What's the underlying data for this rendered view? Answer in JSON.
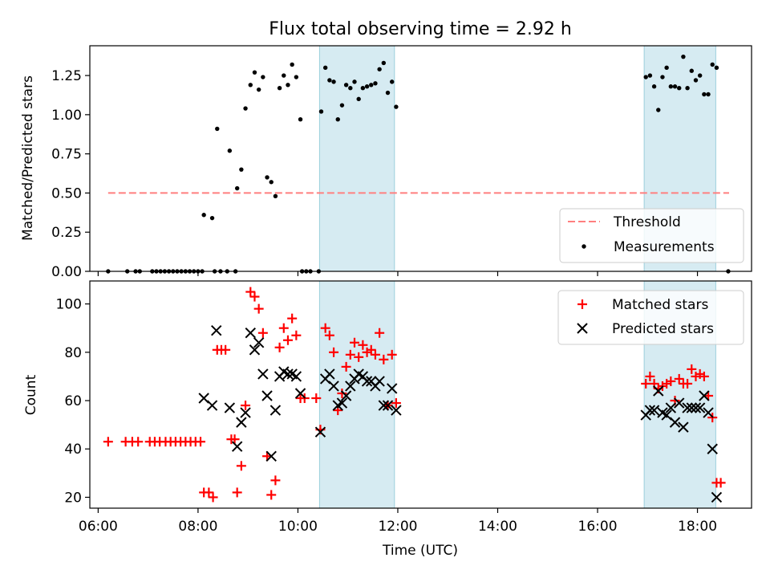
{
  "chart_data": [
    {
      "type": "scatter",
      "title": "Flux total observing time = 2.92 h",
      "xlabel": "",
      "ylabel": "Matched/Predicted stars",
      "xlim": [
        "05:50",
        "19:05"
      ],
      "ylim": [
        0,
        1.44
      ],
      "yticks": [
        "0.00",
        "0.25",
        "0.50",
        "0.75",
        "1.00",
        "1.25"
      ],
      "shaded_intervals": [
        [
          "10:26",
          "11:56"
        ],
        [
          "16:56",
          "18:22"
        ]
      ],
      "legend": {
        "position": "lower right",
        "entries": [
          "Threshold",
          "Measurements"
        ]
      },
      "threshold": {
        "name": "Threshold",
        "value": 0.5,
        "x": [
          "06:12",
          "18:38"
        ],
        "color": "#ff7f7f",
        "style": "dashed"
      },
      "series": [
        {
          "name": "Measurements",
          "color": "#000000",
          "marker": "dot",
          "points": [
            [
              "06:12",
              0
            ],
            [
              "06:35",
              0
            ],
            [
              "06:45",
              0
            ],
            [
              "06:50",
              0
            ],
            [
              "07:05",
              0
            ],
            [
              "07:10",
              0
            ],
            [
              "07:15",
              0
            ],
            [
              "07:20",
              0
            ],
            [
              "07:25",
              0
            ],
            [
              "07:30",
              0
            ],
            [
              "07:35",
              0
            ],
            [
              "07:40",
              0
            ],
            [
              "07:45",
              0
            ],
            [
              "07:50",
              0
            ],
            [
              "07:55",
              0
            ],
            [
              "08:00",
              0
            ],
            [
              "08:05",
              0
            ],
            [
              "08:20",
              0
            ],
            [
              "08:27",
              0
            ],
            [
              "08:35",
              0
            ],
            [
              "08:45",
              0
            ],
            [
              "08:07",
              0.36
            ],
            [
              "08:17",
              0.34
            ],
            [
              "08:23",
              0.91
            ],
            [
              "08:38",
              0.77
            ],
            [
              "08:47",
              0.53
            ],
            [
              "08:52",
              0.65
            ],
            [
              "08:57",
              1.04
            ],
            [
              "09:03",
              1.19
            ],
            [
              "09:08",
              1.27
            ],
            [
              "09:13",
              1.16
            ],
            [
              "09:18",
              1.24
            ],
            [
              "09:23",
              0.6
            ],
            [
              "09:28",
              0.57
            ],
            [
              "09:33",
              0.48
            ],
            [
              "09:38",
              1.17
            ],
            [
              "09:43",
              1.25
            ],
            [
              "09:48",
              1.19
            ],
            [
              "09:53",
              1.32
            ],
            [
              "09:58",
              1.24
            ],
            [
              "10:03",
              0.97
            ],
            [
              "10:05",
              0
            ],
            [
              "10:10",
              0
            ],
            [
              "10:15",
              0
            ],
            [
              "10:25",
              0
            ],
            [
              "10:28",
              1.02
            ],
            [
              "10:33",
              1.3
            ],
            [
              "10:38",
              1.22
            ],
            [
              "10:43",
              1.21
            ],
            [
              "10:48",
              0.97
            ],
            [
              "10:53",
              1.06
            ],
            [
              "10:58",
              1.19
            ],
            [
              "11:03",
              1.17
            ],
            [
              "11:08",
              1.21
            ],
            [
              "11:13",
              1.1
            ],
            [
              "11:18",
              1.17
            ],
            [
              "11:23",
              1.18
            ],
            [
              "11:28",
              1.19
            ],
            [
              "11:33",
              1.2
            ],
            [
              "11:38",
              1.29
            ],
            [
              "11:43",
              1.33
            ],
            [
              "11:48",
              1.14
            ],
            [
              "11:53",
              1.21
            ],
            [
              "11:58",
              1.05
            ],
            [
              "16:58",
              1.24
            ],
            [
              "17:03",
              1.25
            ],
            [
              "17:08",
              1.18
            ],
            [
              "17:13",
              1.03
            ],
            [
              "17:18",
              1.24
            ],
            [
              "17:23",
              1.3
            ],
            [
              "17:28",
              1.18
            ],
            [
              "17:33",
              1.18
            ],
            [
              "17:38",
              1.17
            ],
            [
              "17:43",
              1.37
            ],
            [
              "17:48",
              1.17
            ],
            [
              "17:53",
              1.28
            ],
            [
              "17:58",
              1.22
            ],
            [
              "18:03",
              1.25
            ],
            [
              "18:08",
              1.13
            ],
            [
              "18:13",
              1.13
            ],
            [
              "18:18",
              1.32
            ],
            [
              "18:23",
              1.3
            ],
            [
              "18:37",
              0
            ]
          ]
        }
      ]
    },
    {
      "type": "scatter",
      "title": "",
      "xlabel": "Time (UTC)",
      "ylabel": "Count",
      "xlim": [
        "05:50",
        "19:05"
      ],
      "ylim": [
        15.5,
        109.5
      ],
      "yticks": [
        "20",
        "40",
        "60",
        "80",
        "100"
      ],
      "xticks": [
        "06:00",
        "08:00",
        "10:00",
        "12:00",
        "14:00",
        "16:00",
        "18:00"
      ],
      "shaded_intervals": [
        [
          "10:26",
          "11:56"
        ],
        [
          "16:56",
          "18:22"
        ]
      ],
      "legend": {
        "position": "upper right",
        "entries": [
          "Matched stars",
          "Predicted stars"
        ]
      },
      "series": [
        {
          "name": "Matched stars",
          "color": "#ff0000",
          "marker": "plus",
          "points": [
            [
              "06:12",
              43
            ],
            [
              "06:33",
              43
            ],
            [
              "06:41",
              43
            ],
            [
              "06:48",
              43
            ],
            [
              "07:02",
              43
            ],
            [
              "07:08",
              43
            ],
            [
              "07:14",
              43
            ],
            [
              "07:21",
              43
            ],
            [
              "07:27",
              43
            ],
            [
              "07:33",
              43
            ],
            [
              "07:39",
              43
            ],
            [
              "07:45",
              43
            ],
            [
              "07:51",
              43
            ],
            [
              "07:57",
              43
            ],
            [
              "08:03",
              43
            ],
            [
              "08:07",
              22
            ],
            [
              "08:13",
              22
            ],
            [
              "08:18",
              20
            ],
            [
              "08:23",
              81
            ],
            [
              "08:28",
              81
            ],
            [
              "08:33",
              81
            ],
            [
              "08:40",
              44
            ],
            [
              "08:44",
              44
            ],
            [
              "08:47",
              22
            ],
            [
              "08:52",
              33
            ],
            [
              "08:57",
              58
            ],
            [
              "09:03",
              105
            ],
            [
              "09:08",
              103
            ],
            [
              "09:13",
              98
            ],
            [
              "09:18",
              88
            ],
            [
              "09:23",
              37
            ],
            [
              "09:28",
              21
            ],
            [
              "09:33",
              27
            ],
            [
              "09:38",
              82
            ],
            [
              "09:43",
              90
            ],
            [
              "09:48",
              85
            ],
            [
              "09:53",
              94
            ],
            [
              "09:58",
              87
            ],
            [
              "10:03",
              61
            ],
            [
              "10:08",
              61
            ],
            [
              "10:22",
              61
            ],
            [
              "10:27",
              48
            ],
            [
              "10:33",
              90
            ],
            [
              "10:38",
              87
            ],
            [
              "10:43",
              80
            ],
            [
              "10:48",
              56
            ],
            [
              "10:53",
              63
            ],
            [
              "10:58",
              74
            ],
            [
              "11:03",
              79
            ],
            [
              "11:08",
              84
            ],
            [
              "11:13",
              78
            ],
            [
              "11:18",
              83
            ],
            [
              "11:23",
              80
            ],
            [
              "11:28",
              81
            ],
            [
              "11:33",
              79
            ],
            [
              "11:38",
              88
            ],
            [
              "11:43",
              77
            ],
            [
              "11:48",
              58
            ],
            [
              "11:53",
              79
            ],
            [
              "11:58",
              59
            ],
            [
              "16:58",
              67
            ],
            [
              "17:03",
              70
            ],
            [
              "17:08",
              67
            ],
            [
              "17:13",
              65
            ],
            [
              "17:18",
              66
            ],
            [
              "17:23",
              67
            ],
            [
              "17:28",
              68
            ],
            [
              "17:33",
              60
            ],
            [
              "17:38",
              69
            ],
            [
              "17:43",
              67
            ],
            [
              "17:48",
              67
            ],
            [
              "17:53",
              73
            ],
            [
              "17:58",
              70
            ],
            [
              "18:03",
              71
            ],
            [
              "18:08",
              70
            ],
            [
              "18:13",
              62
            ],
            [
              "18:18",
              53
            ],
            [
              "18:23",
              26
            ],
            [
              "18:28",
              26
            ]
          ]
        },
        {
          "name": "Predicted stars",
          "color": "#000000",
          "marker": "x",
          "points": [
            [
              "08:07",
              61
            ],
            [
              "08:17",
              58
            ],
            [
              "08:22",
              89
            ],
            [
              "08:38",
              57
            ],
            [
              "08:47",
              41
            ],
            [
              "08:52",
              51
            ],
            [
              "08:57",
              55
            ],
            [
              "09:03",
              88
            ],
            [
              "09:08",
              81
            ],
            [
              "09:13",
              84
            ],
            [
              "09:18",
              71
            ],
            [
              "09:23",
              62
            ],
            [
              "09:28",
              37
            ],
            [
              "09:33",
              56
            ],
            [
              "09:38",
              70
            ],
            [
              "09:43",
              72
            ],
            [
              "09:48",
              71
            ],
            [
              "09:53",
              71
            ],
            [
              "09:58",
              70
            ],
            [
              "10:03",
              63
            ],
            [
              "10:27",
              47
            ],
            [
              "10:33",
              69
            ],
            [
              "10:38",
              71
            ],
            [
              "10:43",
              66
            ],
            [
              "10:48",
              58
            ],
            [
              "10:53",
              59
            ],
            [
              "10:58",
              62
            ],
            [
              "11:03",
              66
            ],
            [
              "11:08",
              69
            ],
            [
              "11:13",
              71
            ],
            [
              "11:18",
              70
            ],
            [
              "11:23",
              68
            ],
            [
              "11:28",
              68
            ],
            [
              "11:33",
              66
            ],
            [
              "11:38",
              68
            ],
            [
              "11:43",
              58
            ],
            [
              "11:48",
              58
            ],
            [
              "11:53",
              65
            ],
            [
              "11:58",
              56
            ],
            [
              "16:58",
              54
            ],
            [
              "17:03",
              56
            ],
            [
              "17:08",
              56
            ],
            [
              "17:13",
              64
            ],
            [
              "17:18",
              55
            ],
            [
              "17:23",
              54
            ],
            [
              "17:28",
              57
            ],
            [
              "17:33",
              51
            ],
            [
              "17:38",
              59
            ],
            [
              "17:43",
              49
            ],
            [
              "17:48",
              57
            ],
            [
              "17:53",
              57
            ],
            [
              "17:58",
              57
            ],
            [
              "18:03",
              57
            ],
            [
              "18:08",
              62
            ],
            [
              "18:13",
              55
            ],
            [
              "18:18",
              40
            ],
            [
              "18:23",
              20
            ]
          ]
        }
      ]
    }
  ]
}
